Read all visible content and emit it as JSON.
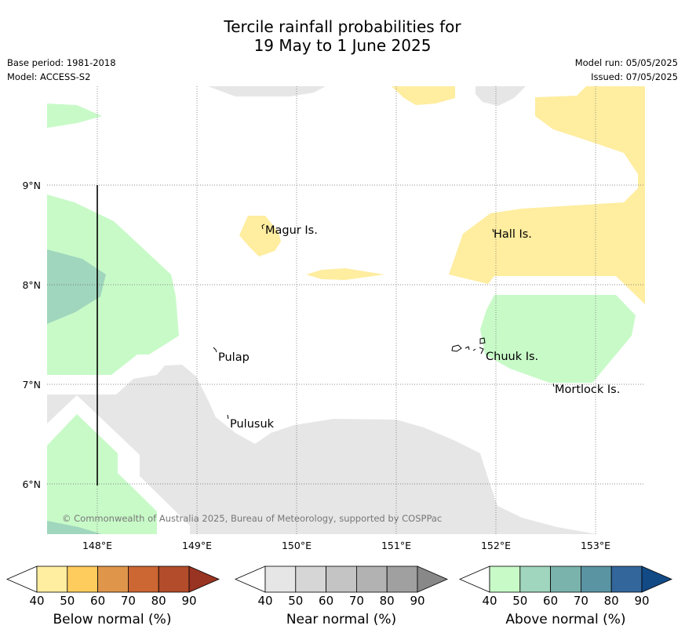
{
  "header": {
    "title_line1": "Tercile rainfall probabilities for",
    "title_line2": "19 May to 1 June 2025",
    "base_period": "Base period: 1981-2018",
    "model": "Model: ACCESS-S2",
    "model_run": "Model run: 05/05/2025",
    "issued": "Issued: 07/05/2025"
  },
  "map": {
    "lon_ticks": [
      "148°E",
      "149°E",
      "150°E",
      "151°E",
      "152°E",
      "153°E"
    ],
    "lat_ticks": [
      "9°N",
      "8°N",
      "7°N",
      "6°N"
    ],
    "places": [
      "Magur Is.",
      "Hall Is.",
      "Pulap",
      "Chuuk Is.",
      "Pulusuk",
      "Mortlock Is."
    ],
    "copyright": "© Commonwealth of Australia 2025, Bureau of Meteorology, supported by COSPPac",
    "colors": {
      "below_50": "#ffeda0",
      "near_50": "#e6e6e6",
      "above_50": "#c8fac8",
      "above_60": "#a0d6bd"
    }
  },
  "legend": [
    {
      "title": "Below normal (%)",
      "ticks": [
        "40",
        "50",
        "60",
        "70",
        "80",
        "90"
      ],
      "colors": [
        "#ffeda0",
        "#fecc5c",
        "#e0964a",
        "#cc6633",
        "#b24c2a",
        "#993322"
      ]
    },
    {
      "title": "Near normal (%)",
      "ticks": [
        "40",
        "50",
        "60",
        "70",
        "80",
        "90"
      ],
      "colors": [
        "#e6e6e6",
        "#d6d6d6",
        "#c4c4c4",
        "#b2b2b2",
        "#a0a0a0",
        "#888888"
      ]
    },
    {
      "title": "Above normal (%)",
      "ticks": [
        "40",
        "50",
        "60",
        "70",
        "80",
        "90"
      ],
      "colors": [
        "#c8fac8",
        "#a0d6bd",
        "#7ab3ac",
        "#5a94a3",
        "#33669b",
        "#124a85"
      ]
    }
  ]
}
